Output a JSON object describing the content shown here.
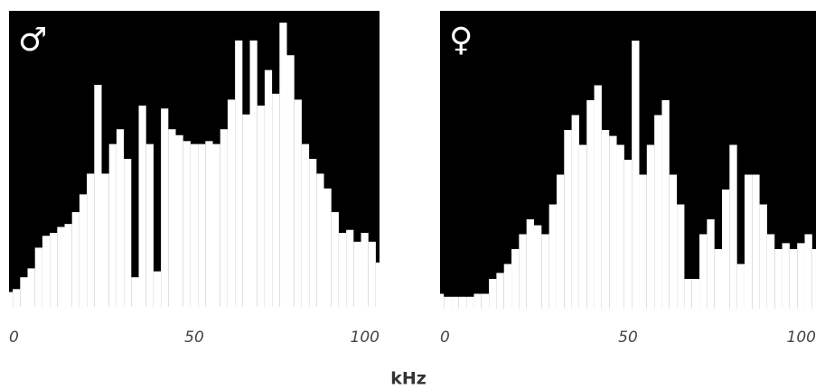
{
  "chart_data": [
    {
      "type": "bar",
      "title": "♂",
      "color": "#ffffff",
      "background": "#000000",
      "x": [
        0,
        2,
        4,
        6,
        8,
        10,
        12,
        14,
        16,
        18,
        20,
        22,
        24,
        26,
        28,
        30,
        32,
        34,
        36,
        38,
        40,
        42,
        44,
        46,
        48,
        50,
        52,
        54,
        56,
        58,
        60,
        62,
        64,
        66,
        68,
        70,
        72,
        74,
        76,
        78,
        80,
        82,
        84,
        86,
        88,
        90,
        92,
        94,
        96,
        98,
        100
      ],
      "values": [
        0.05,
        0.06,
        0.1,
        0.13,
        0.2,
        0.24,
        0.25,
        0.27,
        0.28,
        0.32,
        0.38,
        0.45,
        0.75,
        0.45,
        0.55,
        0.6,
        0.5,
        0.1,
        0.68,
        0.55,
        0.12,
        0.67,
        0.6,
        0.58,
        0.56,
        0.55,
        0.55,
        0.56,
        0.55,
        0.6,
        0.7,
        0.9,
        0.65,
        0.9,
        0.68,
        0.8,
        0.72,
        0.96,
        0.85,
        0.7,
        0.55,
        0.5,
        0.45,
        0.4,
        0.32,
        0.25,
        0.26,
        0.22,
        0.25,
        0.22,
        0.15
      ],
      "xlim": [
        0,
        100
      ],
      "xticks": [
        0,
        50,
        100
      ],
      "ylim": [
        0,
        1
      ]
    },
    {
      "type": "bar",
      "title": "♀",
      "color": "#ffffff",
      "background": "#000000",
      "x": [
        0,
        2,
        4,
        6,
        8,
        10,
        12,
        14,
        16,
        18,
        20,
        22,
        24,
        26,
        28,
        30,
        32,
        34,
        36,
        38,
        40,
        42,
        44,
        46,
        48,
        50,
        52,
        54,
        56,
        58,
        60,
        62,
        64,
        66,
        68,
        70,
        72,
        74,
        76,
        78,
        80,
        82,
        84,
        86,
        88,
        90,
        92,
        94,
        96,
        98,
        100
      ],
      "values": [
        0.05,
        0.04,
        0.04,
        0.04,
        0.04,
        0.05,
        0.05,
        0.1,
        0.12,
        0.15,
        0.2,
        0.25,
        0.3,
        0.28,
        0.25,
        0.35,
        0.45,
        0.6,
        0.65,
        0.55,
        0.7,
        0.75,
        0.6,
        0.58,
        0.55,
        0.5,
        0.9,
        0.45,
        0.55,
        0.65,
        0.7,
        0.45,
        0.35,
        0.1,
        0.1,
        0.25,
        0.3,
        0.2,
        0.4,
        0.55,
        0.15,
        0.45,
        0.45,
        0.35,
        0.25,
        0.2,
        0.22,
        0.2,
        0.22,
        0.25,
        0.2
      ],
      "xlim": [
        0,
        100
      ],
      "xticks": [
        0,
        50,
        100
      ],
      "ylim": [
        0,
        1
      ]
    }
  ],
  "xlabel": "kHz"
}
